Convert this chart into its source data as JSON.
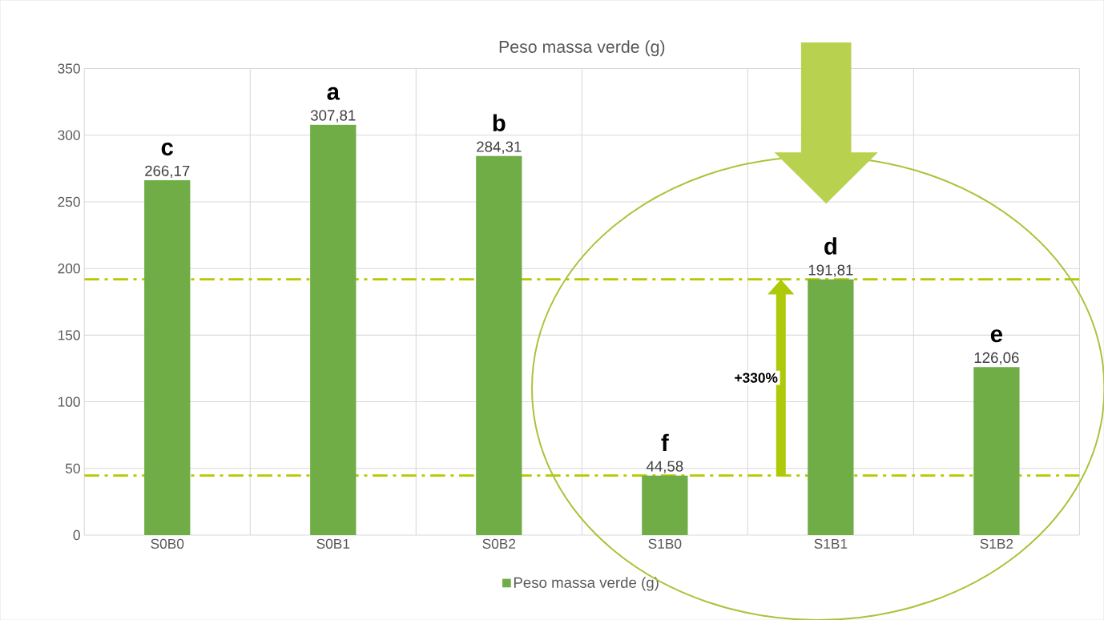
{
  "chart_data": {
    "type": "bar",
    "title": "Peso massa verde (g)",
    "categories": [
      "S0B0",
      "S0B1",
      "S0B2",
      "S1B0",
      "S1B1",
      "S1B2"
    ],
    "series": [
      {
        "name": "Peso massa verde (g)",
        "color": "#70ad47",
        "values": [
          266.17,
          307.81,
          284.31,
          44.58,
          191.81,
          126.06
        ],
        "value_labels": [
          "266,17",
          "307,81",
          "284,31",
          "44,58",
          "191,81",
          "126,06"
        ]
      }
    ],
    "ylim": [
      0,
      350
    ],
    "yticks": [
      0,
      50,
      100,
      150,
      200,
      250,
      300,
      350
    ],
    "grid": true,
    "legend": "bottom",
    "annotations": [
      {
        "text": "c",
        "x": "S0B0",
        "y": 266.17
      },
      {
        "text": "a",
        "x": "S0B1",
        "y": 307.81
      },
      {
        "text": "b",
        "x": "S0B2",
        "y": 284.31
      },
      {
        "text": "f",
        "x": "S1B0",
        "y": 44.58
      },
      {
        "text": "d",
        "x": "S1B1",
        "y": 191.81
      },
      {
        "text": "e",
        "x": "S1B2",
        "y": 126.06
      },
      "+330%"
    ],
    "ref_lines": [
      {
        "axis": "y",
        "value": 191.81,
        "color": "#b5c900",
        "line_style": "dashdotted"
      },
      {
        "axis": "y",
        "value": 44.58,
        "color": "#b5c900",
        "line_style": "dashdotted"
      }
    ]
  }
}
